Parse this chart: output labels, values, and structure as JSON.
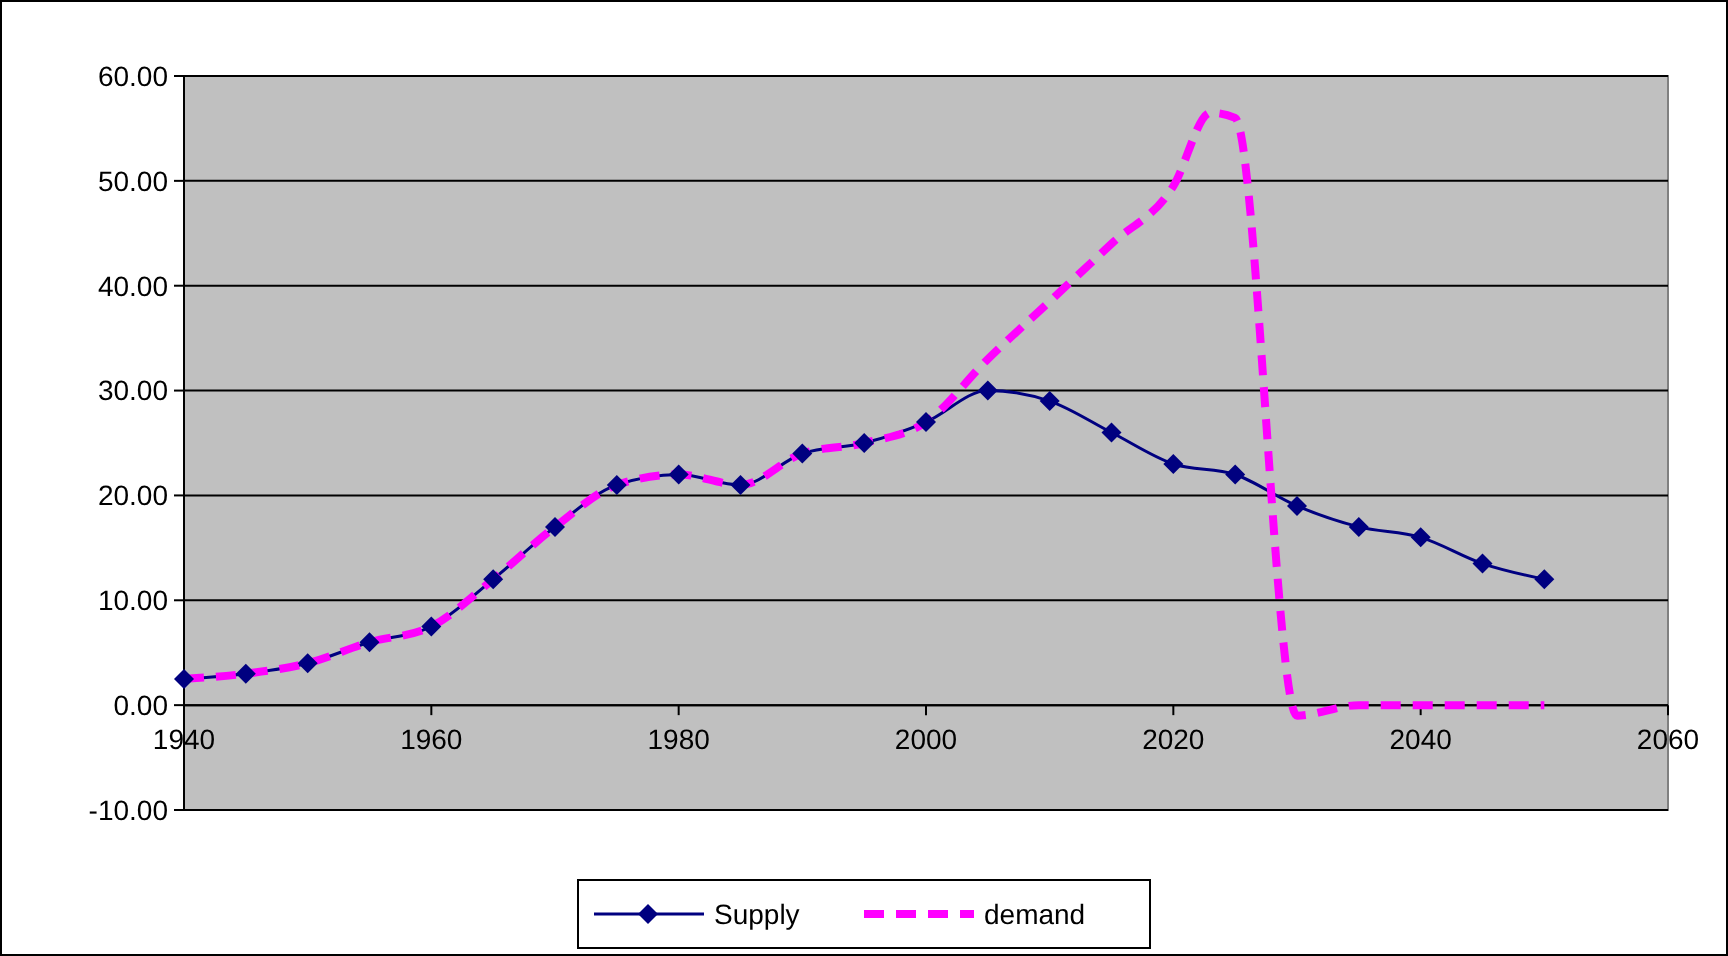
{
  "chart_data": {
    "type": "line",
    "x": [
      1940,
      1945,
      1950,
      1955,
      1960,
      1965,
      1970,
      1975,
      1980,
      1985,
      1990,
      1995,
      2000,
      2005,
      2010,
      2015,
      2020,
      2025,
      2030,
      2035,
      2040,
      2045,
      2050
    ],
    "series": [
      {
        "name": "Supply",
        "color": "#000080",
        "marker": "diamond",
        "line_style": "solid",
        "values": [
          2.5,
          3,
          4,
          6,
          7.5,
          12,
          17,
          21,
          22,
          21,
          24,
          25,
          27,
          30,
          29,
          26,
          23,
          22,
          19,
          17,
          16,
          13.5,
          12
        ]
      },
      {
        "name": "demand",
        "color": "#ff00ff",
        "marker": "none",
        "line_style": "dashed",
        "x": [
          1940,
          1945,
          1950,
          1955,
          1960,
          1965,
          1970,
          1975,
          1980,
          1985,
          1990,
          1995,
          2000,
          2005,
          2010,
          2015,
          2020,
          2023,
          2025,
          2030,
          2035,
          2040,
          2045,
          2050
        ],
        "values": [
          2.5,
          3,
          4,
          6,
          7.5,
          12,
          17,
          21,
          22,
          21,
          24,
          25,
          27,
          33,
          38.5,
          44,
          49.5,
          56.5,
          56,
          -1,
          0,
          0,
          0,
          0
        ]
      }
    ],
    "xlim": [
      1940,
      2060
    ],
    "xticks": [
      1940,
      1960,
      1980,
      2000,
      2020,
      2040,
      2060
    ],
    "ylim": [
      -10,
      60
    ],
    "yticks": [
      {
        "value": -10,
        "label": "-10.00"
      },
      {
        "value": 0,
        "label": "0.00"
      },
      {
        "value": 10,
        "label": "10.00"
      },
      {
        "value": 20,
        "label": "20.00"
      },
      {
        "value": 30,
        "label": "30.00"
      },
      {
        "value": 40,
        "label": "40.00"
      },
      {
        "value": 50,
        "label": "50.00"
      },
      {
        "value": 60,
        "label": "60.00"
      }
    ],
    "grid": "y",
    "legend": "bottom"
  }
}
